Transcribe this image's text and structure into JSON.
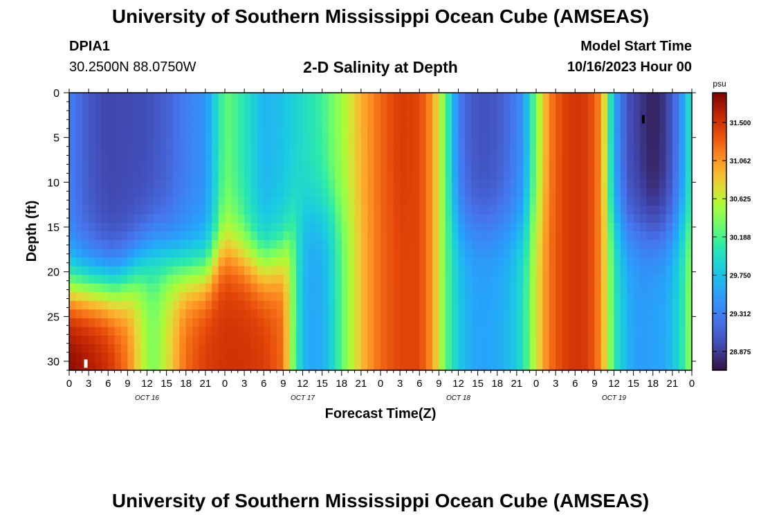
{
  "header": {
    "title": "University of Southern Mississippi Ocean Cube (AMSEAS)",
    "station_id": "DPIA1",
    "station_coords": "30.2500N  88.0750W",
    "plot_title": "2-D Salinity at Depth",
    "model_start_label": "Model Start Time",
    "model_start_value": "10/16/2023 Hour 00"
  },
  "footer": {
    "title": "University of Southern Mississippi Ocean Cube (AMSEAS)"
  },
  "chart_data": {
    "type": "heatmap",
    "title": "2-D Salinity at Depth",
    "xlabel": "Forecast Time(Z)",
    "ylabel": "Depth (ft)",
    "x_hours_range": [
      0,
      96
    ],
    "x_tick_labels": [
      "0",
      "3",
      "6",
      "9",
      "12",
      "15",
      "18",
      "21",
      "0",
      "3",
      "6",
      "9",
      "12",
      "15",
      "18",
      "21",
      "0",
      "3",
      "6",
      "9",
      "12",
      "15",
      "18",
      "21",
      "0",
      "3",
      "6",
      "9",
      "12",
      "15",
      "18",
      "21",
      "0"
    ],
    "x_day_labels": [
      {
        "label": "OCT 16",
        "hour": 12
      },
      {
        "label": "OCT 17",
        "hour": 36
      },
      {
        "label": "OCT 18",
        "hour": 60
      },
      {
        "label": "OCT 19",
        "hour": 84
      }
    ],
    "ylim": [
      0,
      31
    ],
    "y_ticks": [
      0,
      5,
      10,
      15,
      20,
      25,
      30
    ],
    "colorbar": {
      "unit": "psu",
      "range": [
        28.66,
        31.84
      ],
      "tick_values": [
        31.5,
        31.062,
        30.625,
        30.188,
        29.75,
        29.312,
        28.875
      ],
      "tick_labels": [
        "31.500",
        "31.062",
        "30.625",
        "30.188",
        "29.750",
        "29.312",
        "28.875"
      ]
    },
    "surface_salinity_by_hour": [
      [
        0,
        29.3
      ],
      [
        3,
        29.05
      ],
      [
        6,
        28.92
      ],
      [
        9,
        28.95
      ],
      [
        12,
        28.98
      ],
      [
        15,
        29.1
      ],
      [
        18,
        29.3
      ],
      [
        21,
        29.45
      ],
      [
        22,
        29.7
      ],
      [
        24,
        30.3
      ],
      [
        26,
        30.15
      ],
      [
        28,
        29.9
      ],
      [
        30,
        29.65
      ],
      [
        33,
        29.75
      ],
      [
        36,
        29.95
      ],
      [
        39,
        30.15
      ],
      [
        42,
        30.5
      ],
      [
        45,
        30.95
      ],
      [
        48,
        31.25
      ],
      [
        51,
        31.45
      ],
      [
        54,
        31.4
      ],
      [
        56,
        31.05
      ],
      [
        58,
        30.3
      ],
      [
        60,
        29.3
      ],
      [
        62,
        29.05
      ],
      [
        64,
        29.0
      ],
      [
        66,
        29.05
      ],
      [
        68,
        29.2
      ],
      [
        70,
        29.45
      ],
      [
        72,
        30.4
      ],
      [
        74,
        31.15
      ],
      [
        76,
        31.4
      ],
      [
        78,
        31.5
      ],
      [
        80,
        31.45
      ],
      [
        82,
        31.1
      ],
      [
        83,
        30.4
      ],
      [
        84,
        29.6
      ],
      [
        86,
        29.0
      ],
      [
        88,
        28.85
      ],
      [
        90,
        28.72
      ],
      [
        92,
        28.85
      ],
      [
        94,
        29.3
      ],
      [
        96,
        30.1
      ]
    ],
    "bottom_salinity_by_hour": [
      [
        0,
        31.8
      ],
      [
        3,
        31.7
      ],
      [
        6,
        31.55
      ],
      [
        9,
        31.2
      ],
      [
        11,
        30.7
      ],
      [
        13,
        30.35
      ],
      [
        15,
        30.7
      ],
      [
        18,
        31.25
      ],
      [
        21,
        31.45
      ],
      [
        24,
        31.5
      ],
      [
        27,
        31.5
      ],
      [
        30,
        31.45
      ],
      [
        33,
        31.25
      ],
      [
        34,
        30.6
      ],
      [
        36,
        29.7
      ],
      [
        38,
        29.55
      ],
      [
        40,
        29.75
      ],
      [
        42,
        30.25
      ],
      [
        45,
        30.9
      ],
      [
        48,
        31.25
      ],
      [
        51,
        31.4
      ],
      [
        54,
        31.4
      ],
      [
        56,
        31.05
      ],
      [
        58,
        30.3
      ],
      [
        60,
        29.8
      ],
      [
        62,
        29.6
      ],
      [
        64,
        29.55
      ],
      [
        66,
        29.6
      ],
      [
        68,
        29.7
      ],
      [
        70,
        30.0
      ],
      [
        72,
        30.7
      ],
      [
        74,
        31.2
      ],
      [
        76,
        31.4
      ],
      [
        78,
        31.5
      ],
      [
        80,
        31.45
      ],
      [
        82,
        31.1
      ],
      [
        84,
        30.1
      ],
      [
        86,
        29.65
      ],
      [
        88,
        29.5
      ],
      [
        90,
        29.55
      ],
      [
        92,
        29.6
      ],
      [
        94,
        29.9
      ],
      [
        96,
        30.5
      ]
    ],
    "notes": "Low-salinity (28.7-29.2 psu) freshwater lens near surface on Oct 16, Oct 18 midday and Oct 19 midday; high-salinity (31.3-31.8 psu) bottom water on early Oct 16 and vertical high-salinity bands near Oct 17 18Z, Oct 18 03Z, Oct 19 03Z."
  }
}
